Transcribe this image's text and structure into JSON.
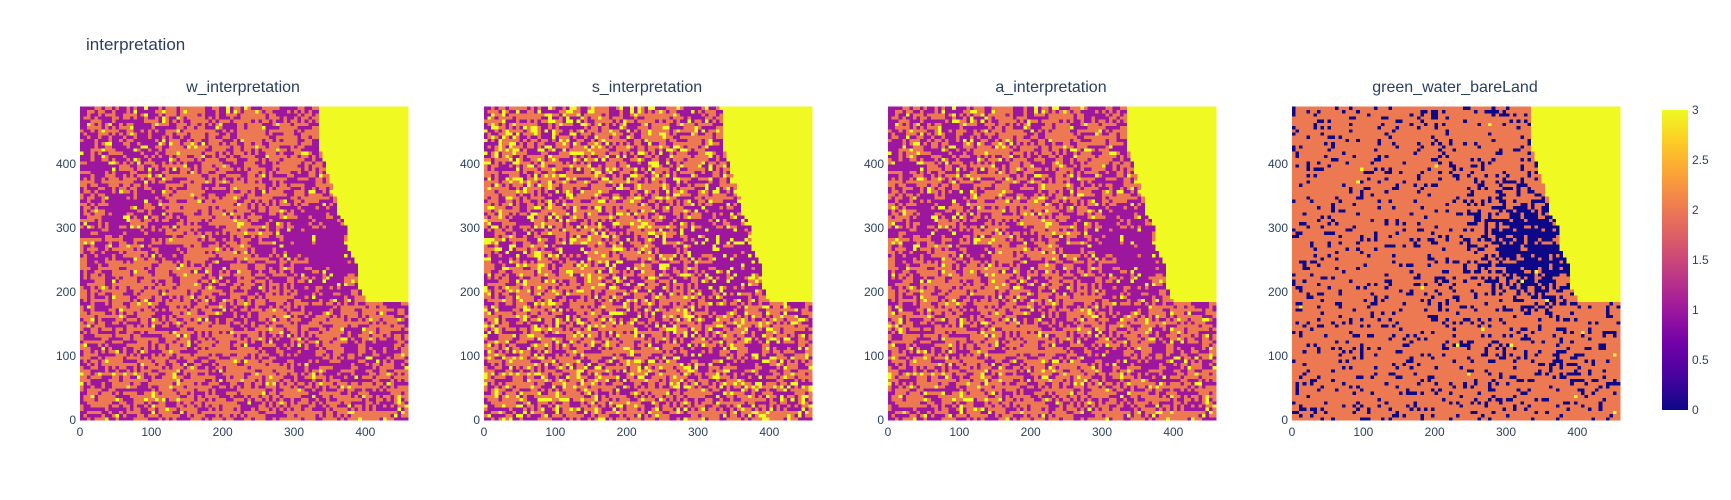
{
  "chart_data": {
    "type": "heatmap",
    "title": "interpretation",
    "panels": [
      {
        "title": "w_interpretation",
        "style": "w"
      },
      {
        "title": "s_interpretation",
        "style": "s"
      },
      {
        "title": "a_interpretation",
        "style": "a"
      },
      {
        "title": "green_water_bareLand",
        "style": "g"
      }
    ],
    "grid": {
      "cols": 457,
      "rows": 500
    },
    "x_ticks": [
      0,
      100,
      200,
      300,
      400
    ],
    "y_ticks": [
      0,
      100,
      200,
      300,
      400
    ],
    "xlim": [
      0,
      457
    ],
    "ylim": [
      0,
      500
    ],
    "colorbar": {
      "range": [
        0,
        3
      ],
      "ticks": [
        "0",
        "0.5",
        "1",
        "1.5",
        "2",
        "2.5",
        "3"
      ],
      "colorscale": [
        "#0d0887",
        "#46039f",
        "#7201a8",
        "#9c179e",
        "#bd3786",
        "#d8576b",
        "#ed7953",
        "#fb9f3a",
        "#fdca26",
        "#f0f921"
      ]
    },
    "category_colors": {
      "0": "#0d0887",
      "1": "#9c179e",
      "2": "#ed7953",
      "3": "#f0f921"
    }
  }
}
